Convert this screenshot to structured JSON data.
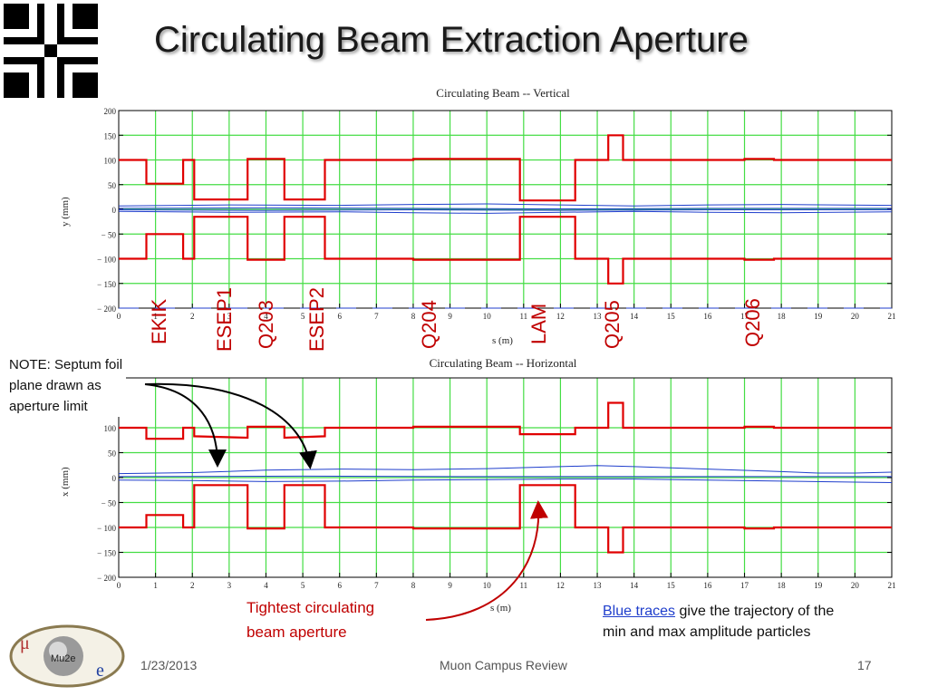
{
  "slide": {
    "title": "Circulating Beam Extraction Aperture",
    "footer": {
      "date": "1/23/2013",
      "center": "Muon Campus Review",
      "page": "17"
    },
    "logo_text": "Mu2e",
    "logo_letters": [
      "μ",
      "e"
    ]
  },
  "notes": {
    "septum": [
      "NOTE: Septum foil",
      "plane drawn as",
      "aperture limit"
    ],
    "tightest": [
      "Tightest circulating",
      "beam aperture"
    ],
    "blue_label": "Blue traces",
    "blue_rest": [
      "give the trajectory of the",
      "min and max amplitude particles"
    ]
  },
  "magnets": [
    "EKIK",
    "ESEP1",
    "Q203",
    "ESEP2",
    "Q204",
    "LAM",
    "Q205",
    "Q206"
  ],
  "colors": {
    "aperture": "#e00000",
    "trajectory": "#1f3ecc",
    "grid": "#44dd44",
    "axis": "#000000",
    "title_shadow": "#9a9a9a",
    "accent": "#c00000"
  },
  "chart_data": [
    {
      "type": "line",
      "title": "Circulating Beam -- Vertical",
      "xlabel": "s (m)",
      "ylabel": "y (mm)",
      "xlim": [
        0,
        21
      ],
      "ylim": [
        -200,
        200
      ],
      "xticks": [
        0,
        1,
        2,
        3,
        4,
        5,
        6,
        7,
        8,
        9,
        10,
        11,
        12,
        13,
        14,
        15,
        16,
        17,
        18,
        19,
        20,
        21
      ],
      "yticks": [
        200,
        150,
        100,
        50,
        0,
        -50,
        -100,
        -150,
        -200
      ],
      "ytick_labels": [
        "200",
        "150",
        "100",
        "50",
        "0",
        "− 50",
        "− 100",
        "− 150",
        "− 200"
      ],
      "grid": true,
      "series": [
        {
          "x": [
            0,
            0.75,
            0.75,
            1.75,
            1.75,
            2.05,
            2.05,
            3.5,
            3.5,
            4.5,
            4.5,
            5.6,
            5.6,
            8.0,
            8.0,
            10.9,
            10.9,
            12.4,
            12.4,
            13.3,
            13.3,
            13.7,
            13.7,
            17.0,
            17.0,
            17.8,
            17.8,
            21
          ],
          "y": [
            100,
            100,
            52,
            52,
            100,
            100,
            20,
            20,
            102,
            102,
            20,
            20,
            100,
            100,
            102,
            102,
            18,
            18,
            100,
            100,
            150,
            150,
            100,
            100,
            102,
            102,
            100,
            100
          ]
        },
        {
          "x": [
            0,
            0.75,
            0.75,
            1.75,
            1.75,
            2.05,
            2.05,
            3.5,
            3.5,
            4.5,
            4.5,
            5.6,
            5.6,
            8.0,
            8.0,
            10.9,
            10.9,
            12.4,
            12.4,
            13.3,
            13.3,
            13.7,
            13.7,
            17.0,
            17.0,
            17.8,
            17.8,
            21
          ],
          "y": [
            -100,
            -100,
            -50,
            -50,
            -100,
            -100,
            -15,
            -15,
            -102,
            -102,
            -15,
            -15,
            -100,
            -100,
            -102,
            -102,
            -15,
            -15,
            -100,
            -100,
            -150,
            -150,
            -100,
            -100,
            -102,
            -102,
            -100,
            -100
          ]
        },
        {
          "x": [
            0,
            3,
            6,
            8,
            10,
            12,
            14,
            16,
            18,
            21
          ],
          "y": [
            7,
            9,
            8,
            10,
            11,
            9,
            7,
            9,
            10,
            8
          ]
        },
        {
          "x": [
            0,
            3,
            6,
            8,
            10,
            12,
            14,
            16,
            18,
            21
          ],
          "y": [
            -4,
            -6,
            -5,
            -7,
            -8,
            -6,
            -4,
            -6,
            -7,
            -5
          ]
        },
        {
          "x": [
            0,
            4,
            8,
            12,
            16,
            21
          ],
          "y": [
            2,
            3,
            2,
            1,
            2,
            2
          ]
        },
        {
          "x": [
            0,
            4,
            8,
            12,
            16,
            21
          ],
          "y": [
            -1,
            -2,
            -1,
            -2,
            -1,
            -1
          ]
        }
      ]
    },
    {
      "type": "line",
      "title": "Circulating Beam -- Horizontal",
      "xlabel": "s (m)",
      "ylabel": "x (mm)",
      "xlim": [
        0,
        21
      ],
      "ylim": [
        -200,
        200
      ],
      "xticks": [
        0,
        1,
        2,
        3,
        4,
        5,
        6,
        7,
        8,
        9,
        10,
        11,
        12,
        13,
        14,
        15,
        16,
        17,
        18,
        19,
        20,
        21
      ],
      "yticks": [
        100,
        50,
        0,
        -50,
        -100,
        -150,
        -200
      ],
      "ytick_labels": [
        "100",
        "50",
        "0",
        "− 50",
        "− 100",
        "− 150",
        "− 200"
      ],
      "grid": true,
      "series": [
        {
          "x": [
            0,
            0.75,
            0.75,
            1.75,
            1.75,
            2.05,
            2.05,
            3.5,
            3.5,
            4.5,
            4.5,
            5.6,
            5.6,
            8.0,
            8.0,
            10.9,
            10.9,
            12.4,
            12.4,
            13.3,
            13.3,
            13.7,
            13.7,
            17.0,
            17.0,
            17.8,
            17.8,
            21
          ],
          "y": [
            100,
            100,
            78,
            78,
            100,
            100,
            83,
            80,
            102,
            102,
            80,
            83,
            100,
            100,
            102,
            102,
            87,
            87,
            100,
            100,
            150,
            150,
            100,
            100,
            102,
            102,
            100,
            100
          ]
        },
        {
          "x": [
            0,
            0.75,
            0.75,
            1.75,
            1.75,
            2.05,
            2.05,
            3.5,
            3.5,
            4.5,
            4.5,
            5.6,
            5.6,
            8.0,
            8.0,
            10.9,
            10.9,
            12.4,
            12.4,
            13.3,
            13.3,
            13.7,
            13.7,
            17.0,
            17.0,
            17.8,
            17.8,
            21
          ],
          "y": [
            -100,
            -100,
            -75,
            -75,
            -100,
            -100,
            -15,
            -15,
            -102,
            -102,
            -15,
            -15,
            -100,
            -100,
            -102,
            -102,
            -15,
            -15,
            -100,
            -100,
            -150,
            -150,
            -100,
            -100,
            -102,
            -102,
            -100,
            -100
          ]
        },
        {
          "x": [
            0,
            2,
            4,
            6,
            8,
            10,
            12,
            13,
            14,
            16,
            18,
            19,
            20,
            21
          ],
          "y": [
            8,
            10,
            15,
            17,
            16,
            18,
            22,
            24,
            22,
            17,
            12,
            9,
            9,
            11
          ]
        },
        {
          "x": [
            0,
            2,
            4,
            6,
            8,
            10,
            12,
            14,
            16,
            18,
            20,
            21
          ],
          "y": [
            -5,
            -6,
            -8,
            -7,
            -5,
            -4,
            -3,
            -3,
            -5,
            -7,
            -9,
            -10
          ]
        },
        {
          "x": [
            0,
            5,
            10,
            15,
            21
          ],
          "y": [
            2,
            3,
            2,
            2,
            2
          ]
        }
      ]
    }
  ]
}
